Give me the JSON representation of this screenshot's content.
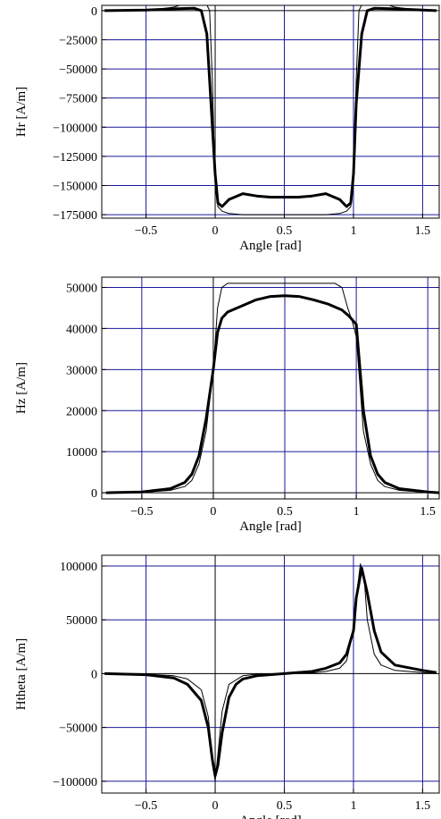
{
  "chart_data": [
    {
      "type": "line",
      "xlabel": "Angle [rad]",
      "ylabel": "Hr [A/m]",
      "xlim": [
        -0.82,
        1.62
      ],
      "ylim": [
        -178000,
        4500
      ],
      "x_ticks": [
        -0.5,
        0,
        0.5,
        1,
        1.5
      ],
      "x_tick_labels": [
        "−0.5",
        "0",
        "0.5",
        "1",
        "1.5"
      ],
      "y_ticks": [
        0,
        -25000,
        -50000,
        -75000,
        -100000,
        -125000,
        -150000,
        -175000
      ],
      "y_tick_labels": [
        "0",
        "−25000",
        "−50000",
        "−75000",
        "−100000",
        "−125000",
        "−150000",
        "−175000"
      ],
      "grid": true,
      "grid_color": "#1a1a99",
      "series": [
        {
          "style": "thin",
          "x": [
            -0.8,
            -0.5,
            -0.3,
            -0.15,
            -0.08,
            -0.04,
            -0.02,
            0,
            0.02,
            0.05,
            0.1,
            0.2,
            0.3,
            0.4,
            0.5,
            0.6,
            0.7,
            0.8,
            0.9,
            0.95,
            0.98,
            1.0,
            1.02,
            1.04,
            1.08,
            1.15,
            1.3,
            1.5,
            1.6
          ],
          "y": [
            0,
            0,
            3000,
            8500,
            10000,
            0,
            -60000,
            -150000,
            -168000,
            -172000,
            -174000,
            -175000,
            -175000,
            -175000,
            -175000,
            -175000,
            -175000,
            -175000,
            -174000,
            -172000,
            -168000,
            -150000,
            -60000,
            0,
            10000,
            8500,
            3000,
            0,
            0
          ]
        },
        {
          "style": "thick",
          "x": [
            -0.8,
            -0.5,
            -0.3,
            -0.15,
            -0.1,
            -0.06,
            -0.03,
            0,
            0.02,
            0.05,
            0.1,
            0.2,
            0.3,
            0.4,
            0.5,
            0.6,
            0.7,
            0.8,
            0.9,
            0.95,
            0.98,
            1.0,
            1.02,
            1.06,
            1.1,
            1.15,
            1.3,
            1.5,
            1.6
          ],
          "y": [
            0,
            500,
            1500,
            2000,
            0,
            -20000,
            -80000,
            -140000,
            -165000,
            -168000,
            -162000,
            -157000,
            -159000,
            -160000,
            -160000,
            -160000,
            -159000,
            -157000,
            -162000,
            -168000,
            -165000,
            -140000,
            -80000,
            -20000,
            0,
            2000,
            1500,
            500,
            0
          ]
        }
      ]
    },
    {
      "type": "line",
      "xlabel": "Angle [rad]",
      "ylabel": "Hz [A/m]",
      "xlim": [
        -0.78,
        1.58
      ],
      "ylim": [
        -1500,
        52500
      ],
      "x_ticks": [
        -0.5,
        0,
        0.5,
        1,
        1.5
      ],
      "x_tick_labels": [
        "−0.5",
        "0",
        "0.5",
        "1",
        "1.5"
      ],
      "y_ticks": [
        0,
        10000,
        20000,
        30000,
        40000,
        50000
      ],
      "y_tick_labels": [
        "0",
        "10000",
        "20000",
        "30000",
        "40000",
        "50000"
      ],
      "grid": true,
      "grid_color": "#1a1a99",
      "series": [
        {
          "style": "thin",
          "x": [
            -0.75,
            -0.5,
            -0.3,
            -0.2,
            -0.15,
            -0.1,
            -0.05,
            0,
            0.03,
            0.06,
            0.1,
            0.15,
            0.2,
            0.3,
            0.5,
            0.7,
            0.8,
            0.85,
            0.9,
            0.94,
            0.97,
            1.0,
            1.05,
            1.1,
            1.15,
            1.2,
            1.3,
            1.5,
            1.58
          ],
          "y": [
            0,
            100,
            600,
            1500,
            3000,
            7000,
            15000,
            30000,
            45000,
            50000,
            51000,
            51000,
            51000,
            51000,
            51000,
            51000,
            51000,
            51000,
            50000,
            45000,
            42000,
            38000,
            15000,
            7000,
            3000,
            1500,
            600,
            100,
            0
          ]
        },
        {
          "style": "thick",
          "x": [
            -0.75,
            -0.5,
            -0.3,
            -0.2,
            -0.15,
            -0.1,
            -0.05,
            0,
            0.03,
            0.06,
            0.1,
            0.2,
            0.3,
            0.4,
            0.5,
            0.6,
            0.7,
            0.8,
            0.9,
            0.95,
            1.0,
            1.05,
            1.1,
            1.15,
            1.2,
            1.3,
            1.5,
            1.58
          ],
          "y": [
            0,
            200,
            1000,
            2500,
            4500,
            9000,
            18000,
            30000,
            39000,
            42500,
            44000,
            45500,
            47000,
            47800,
            48000,
            47800,
            47000,
            46000,
            44500,
            43000,
            41000,
            20000,
            9000,
            4500,
            2500,
            1000,
            200,
            0
          ]
        }
      ]
    },
    {
      "type": "line",
      "xlabel": "Angle [rad]",
      "ylabel": "Htheta [A/m]",
      "xlim": [
        -0.82,
        1.62
      ],
      "ylim": [
        -111000,
        110000
      ],
      "x_ticks": [
        -0.5,
        0,
        0.5,
        1,
        1.5
      ],
      "x_tick_labels": [
        "−0.5",
        "0",
        "0.5",
        "1",
        "1.5"
      ],
      "y_ticks": [
        100000,
        50000,
        0,
        -50000,
        -100000
      ],
      "y_tick_labels": [
        "100000",
        "50000",
        "0",
        "−50000",
        "−100000"
      ],
      "grid": true,
      "grid_color": "#1a1a99",
      "series": [
        {
          "style": "thin",
          "x": [
            -0.8,
            -0.5,
            -0.3,
            -0.2,
            -0.1,
            -0.05,
            -0.02,
            0,
            0.02,
            0.05,
            0.1,
            0.2,
            0.3,
            0.5,
            0.7,
            0.8,
            0.9,
            0.95,
            1.0,
            1.02,
            1.05,
            1.08,
            1.1,
            1.15,
            1.2,
            1.3,
            1.5,
            1.6
          ],
          "y": [
            0,
            -500,
            -2000,
            -5000,
            -15000,
            -40000,
            -80000,
            -100000,
            -75000,
            -35000,
            -10000,
            -2000,
            -500,
            0,
            500,
            2000,
            5000,
            12000,
            40000,
            70000,
            102000,
            85000,
            50000,
            18000,
            8000,
            3000,
            1000,
            0
          ]
        },
        {
          "style": "thick",
          "x": [
            -0.8,
            -0.5,
            -0.3,
            -0.2,
            -0.1,
            -0.05,
            -0.02,
            0,
            0.02,
            0.05,
            0.1,
            0.15,
            0.2,
            0.3,
            0.5,
            0.7,
            0.8,
            0.9,
            0.95,
            1.0,
            1.02,
            1.06,
            1.1,
            1.15,
            1.2,
            1.3,
            1.5,
            1.6
          ],
          "y": [
            0,
            -1000,
            -4000,
            -10000,
            -25000,
            -50000,
            -80000,
            -95000,
            -85000,
            -55000,
            -22000,
            -10000,
            -5000,
            -2000,
            0,
            2000,
            5000,
            10000,
            18000,
            40000,
            70000,
            98000,
            75000,
            40000,
            20000,
            8000,
            3000,
            1000
          ]
        }
      ]
    }
  ]
}
